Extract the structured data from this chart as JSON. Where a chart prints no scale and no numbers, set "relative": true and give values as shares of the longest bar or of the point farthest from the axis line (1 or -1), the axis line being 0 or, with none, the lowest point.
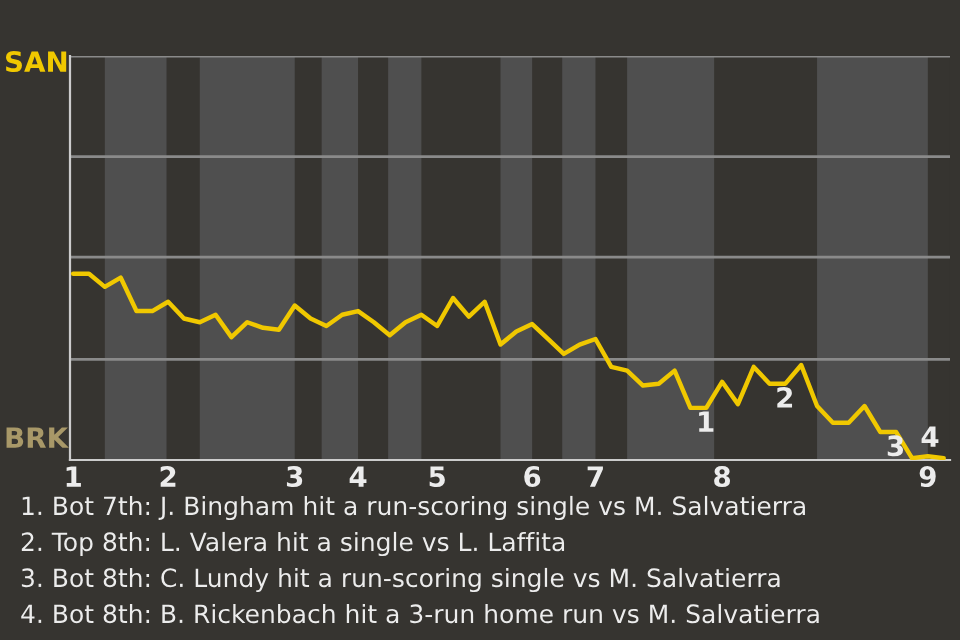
{
  "chart_data": {
    "type": "line",
    "relative": true,
    "categories": [
      "1",
      null,
      null,
      null,
      null,
      null,
      "2",
      null,
      null,
      null,
      null,
      null,
      null,
      null,
      "3",
      null,
      null,
      null,
      "4",
      null,
      null,
      null,
      null,
      "5",
      null,
      null,
      null,
      null,
      null,
      "6",
      null,
      null,
      null,
      "7",
      null,
      null,
      null,
      null,
      null,
      null,
      null,
      "8",
      null,
      null,
      null,
      null,
      null,
      null,
      null,
      null,
      null,
      null,
      null,
      null,
      "9",
      null
    ],
    "series": [
      {
        "color": "#f0c800",
        "values": [
          1,
          1,
          0.93,
          0.98,
          0.8,
          0.8,
          0.85,
          0.76,
          0.74,
          0.78,
          0.66,
          0.74,
          0.71,
          0.7,
          0.83,
          0.76,
          0.72,
          0.78,
          0.8,
          0.74,
          0.67,
          0.74,
          0.78,
          0.72,
          0.87,
          0.77,
          0.85,
          0.62,
          0.69,
          0.73,
          0.65,
          0.57,
          0.62,
          0.65,
          0.5,
          0.48,
          0.4,
          0.41,
          0.48,
          0.28,
          0.28,
          0.42,
          0.3,
          0.5,
          0.41,
          0.41,
          0.51,
          0.29,
          0.2,
          0.2,
          0.29,
          0.15,
          0.15,
          0.01,
          0.02,
          0.01
        ]
      }
    ],
    "ref_lines": [
      {
        "axis": "y",
        "value": 0.54,
        "color": "#8a8a8a"
      },
      {
        "axis": "y",
        "value": 1.09,
        "color": "#8a8a8a"
      },
      {
        "axis": "y",
        "value": 1.63,
        "color": "#8a8a8a"
      },
      {
        "axis": "y",
        "value": 2.17,
        "color": "#8a8a8a"
      }
    ],
    "legend": false,
    "marker": "none",
    "line_style": "solid",
    "annotations": [
      "SAN",
      "BRK",
      {
        "text": "1",
        "y": 0.28
      },
      {
        "text": "2",
        "y": 0.41
      },
      {
        "text": "3",
        "y": 0.15
      },
      {
        "text": "4",
        "y": 0.01
      },
      "1. Bot 7th: J. Bingham hit a run-scoring single vs M. Salvatierra",
      "2. Top 8th: L. Valera hit a single vs L. Laffita",
      "3. Bot 8th: C. Lundy hit a run-scoring single vs M. Salvatierra",
      "4. Bot 8th: B. Rickenbach hit a 3-run home run vs M. Salvatierra"
    ]
  }
}
